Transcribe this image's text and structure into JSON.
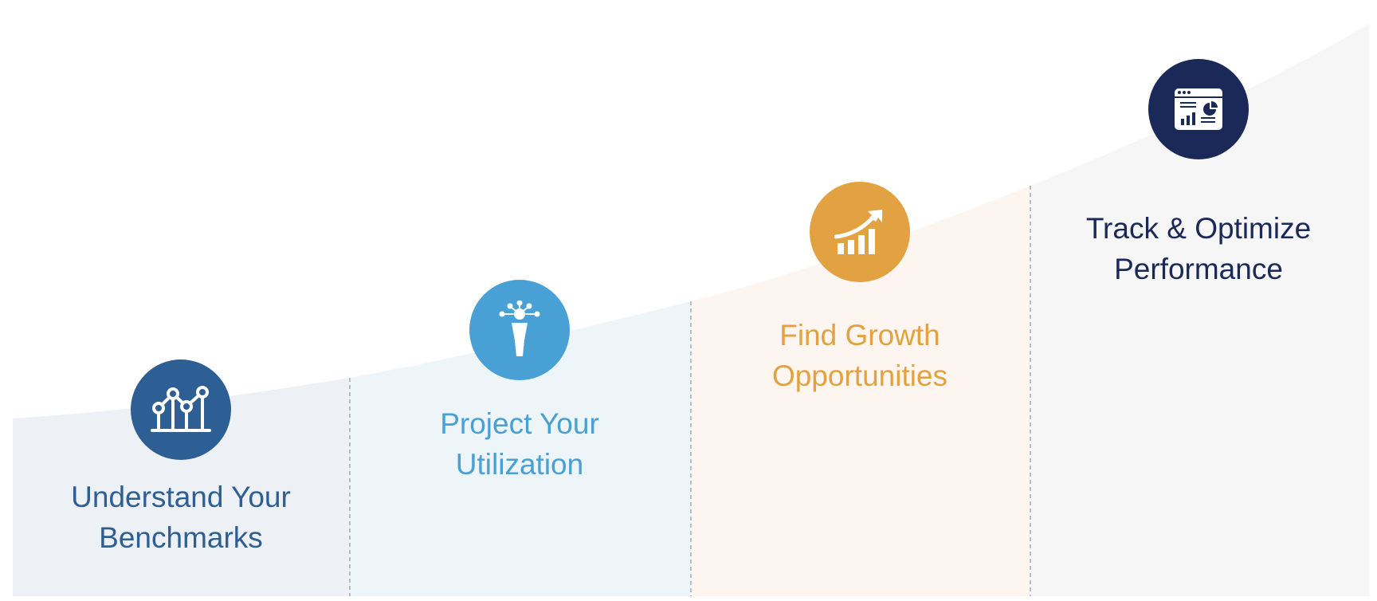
{
  "colors": {
    "stage1": "#2d5f94",
    "stage2": "#48a0d4",
    "stage3": "#e2a241",
    "stage4": "#1a2957",
    "band1": "#edf0f5",
    "band2": "#edf5f9",
    "band3": "#fdf6f0",
    "band4": "#f6f6f7",
    "divider": "#b9bcc2"
  },
  "stages": [
    {
      "icon": "line-chart-icon",
      "title_line1": "Understand Your",
      "title_line2": "Benchmarks"
    },
    {
      "icon": "idea-person-icon",
      "title_line1": "Project Your",
      "title_line2": "Utilization"
    },
    {
      "icon": "growth-chart-icon",
      "title_line1": "Find Growth",
      "title_line2": "Opportunities"
    },
    {
      "icon": "dashboard-window-icon",
      "title_line1": "Track & Optimize",
      "title_line2": "Performance"
    }
  ]
}
